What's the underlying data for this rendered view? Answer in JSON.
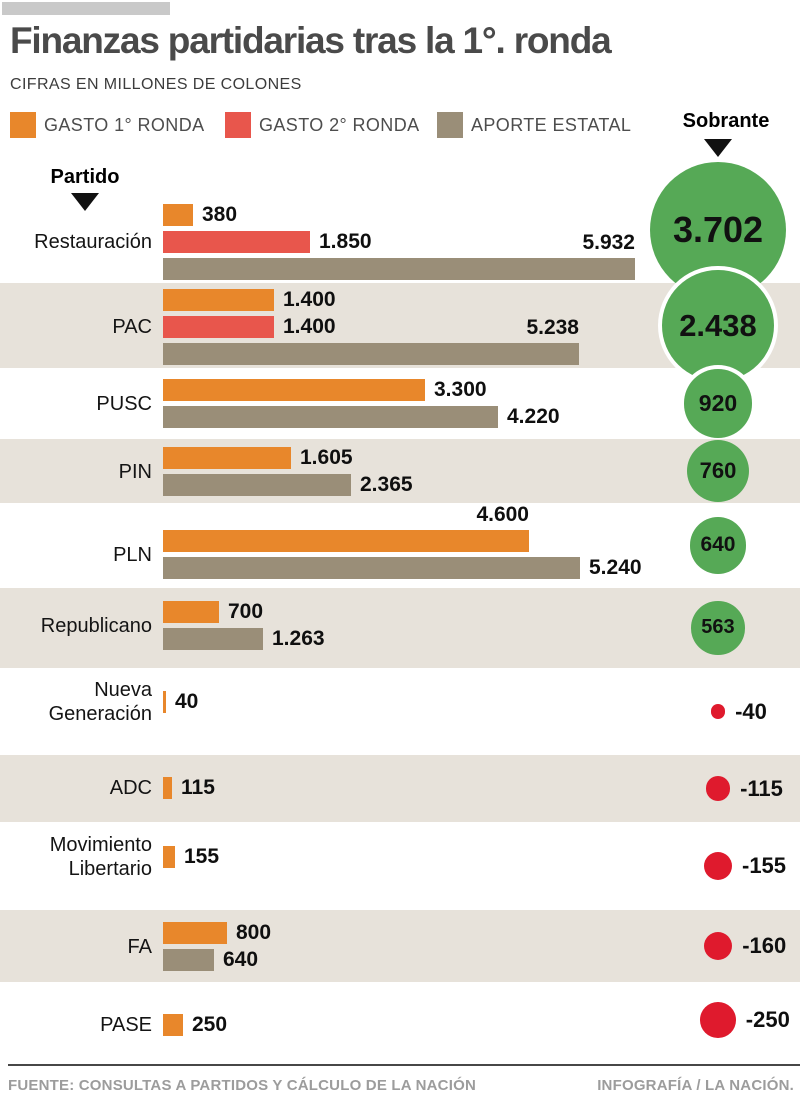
{
  "header": {
    "title": "Finanzas partidarias tras la 1°. ronda",
    "subtitle": "CIFRAS EN MILLONES DE COLONES"
  },
  "columns": {
    "party_header": "Partido",
    "surplus_header": "Sobrante"
  },
  "legend": [
    {
      "id": "gasto1",
      "label": "GASTO 1° RONDA",
      "color": "#E8872B"
    },
    {
      "id": "gasto2",
      "label": "GASTO 2° RONDA",
      "color": "#E8564C"
    },
    {
      "id": "aporte",
      "label": "APORTE ESTATAL",
      "color": "#9A8E78"
    }
  ],
  "colors": {
    "row_alt_background": "#E7E2DA",
    "surplus_positive": "#56A956",
    "surplus_negative": "#DF1A2D",
    "title_text": "#4A4A4A",
    "footer_text": "#9C9C9C"
  },
  "footer": {
    "source": "FUENTE: CONSULTAS A PARTIDOS Y CÁLCULO DE LA NACIÓN",
    "credit": "INFOGRAFÍA / LA NACIÓN."
  },
  "chart_data": {
    "type": "bar",
    "orientation": "horizontal",
    "unit": "millones de colones",
    "title": "Finanzas partidarias tras la 1°. ronda",
    "series_names": [
      "GASTO 1° RONDA",
      "GASTO 2° RONDA",
      "APORTE ESTATAL"
    ],
    "rows": [
      {
        "party": "Restauración",
        "bars": [
          {
            "series": "gasto1",
            "value": 380,
            "label": "380",
            "labelPos": "right"
          },
          {
            "series": "gasto2",
            "value": 1850,
            "label": "1.850",
            "labelPos": "right"
          },
          {
            "series": "aporte",
            "value": 5932,
            "label": "5.932",
            "labelPos": "above"
          }
        ],
        "sobrante": {
          "value": 3702,
          "label": "3.702"
        }
      },
      {
        "party": "PAC",
        "bars": [
          {
            "series": "gasto1",
            "value": 1400,
            "label": "1.400",
            "labelPos": "right"
          },
          {
            "series": "gasto2",
            "value": 1400,
            "label": "1.400",
            "labelPos": "right"
          },
          {
            "series": "aporte",
            "value": 5238,
            "label": "5.238",
            "labelPos": "above"
          }
        ],
        "sobrante": {
          "value": 2438,
          "label": "2.438"
        }
      },
      {
        "party": "PUSC",
        "bars": [
          {
            "series": "gasto1",
            "value": 3300,
            "label": "3.300",
            "labelPos": "right"
          },
          {
            "series": "aporte",
            "value": 4220,
            "label": "4.220",
            "labelPos": "right"
          }
        ],
        "sobrante": {
          "value": 920,
          "label": "920"
        }
      },
      {
        "party": "PIN",
        "bars": [
          {
            "series": "gasto1",
            "value": 1605,
            "label": "1.605",
            "labelPos": "right"
          },
          {
            "series": "aporte",
            "value": 2365,
            "label": "2.365",
            "labelPos": "right"
          }
        ],
        "sobrante": {
          "value": 760,
          "label": "760"
        }
      },
      {
        "party": "PLN",
        "bars": [
          {
            "series": "gasto1",
            "value": 4600,
            "label": "4.600",
            "labelPos": "above"
          },
          {
            "series": "aporte",
            "value": 5240,
            "label": "5.240",
            "labelPos": "right"
          }
        ],
        "sobrante": {
          "value": 640,
          "label": "640"
        }
      },
      {
        "party": "Republicano",
        "bars": [
          {
            "series": "gasto1",
            "value": 700,
            "label": "700",
            "labelPos": "right"
          },
          {
            "series": "aporte",
            "value": 1263,
            "label": "1.263",
            "labelPos": "right"
          }
        ],
        "sobrante": {
          "value": 563,
          "label": "563"
        }
      },
      {
        "party": "Nueva Generación",
        "bars": [
          {
            "series": "gasto1",
            "value": 40,
            "label": "40",
            "labelPos": "right"
          }
        ],
        "sobrante": {
          "value": -40,
          "label": "-40"
        }
      },
      {
        "party": "ADC",
        "bars": [
          {
            "series": "gasto1",
            "value": 115,
            "label": "115",
            "labelPos": "right"
          }
        ],
        "sobrante": {
          "value": -115,
          "label": "-115"
        }
      },
      {
        "party": "Movimiento Libertario",
        "bars": [
          {
            "series": "gasto1",
            "value": 155,
            "label": "155",
            "labelPos": "right"
          }
        ],
        "sobrante": {
          "value": -155,
          "label": "-155"
        }
      },
      {
        "party": "FA",
        "bars": [
          {
            "series": "gasto1",
            "value": 800,
            "label": "800",
            "labelPos": "right"
          },
          {
            "series": "aporte",
            "value": 640,
            "label": "640",
            "labelPos": "right"
          }
        ],
        "sobrante": {
          "value": -160,
          "label": "-160"
        }
      },
      {
        "party": "PASE",
        "bars": [
          {
            "series": "gasto1",
            "value": 250,
            "label": "250",
            "labelPos": "right"
          }
        ],
        "sobrante": {
          "value": -250,
          "label": "-250"
        }
      }
    ]
  }
}
